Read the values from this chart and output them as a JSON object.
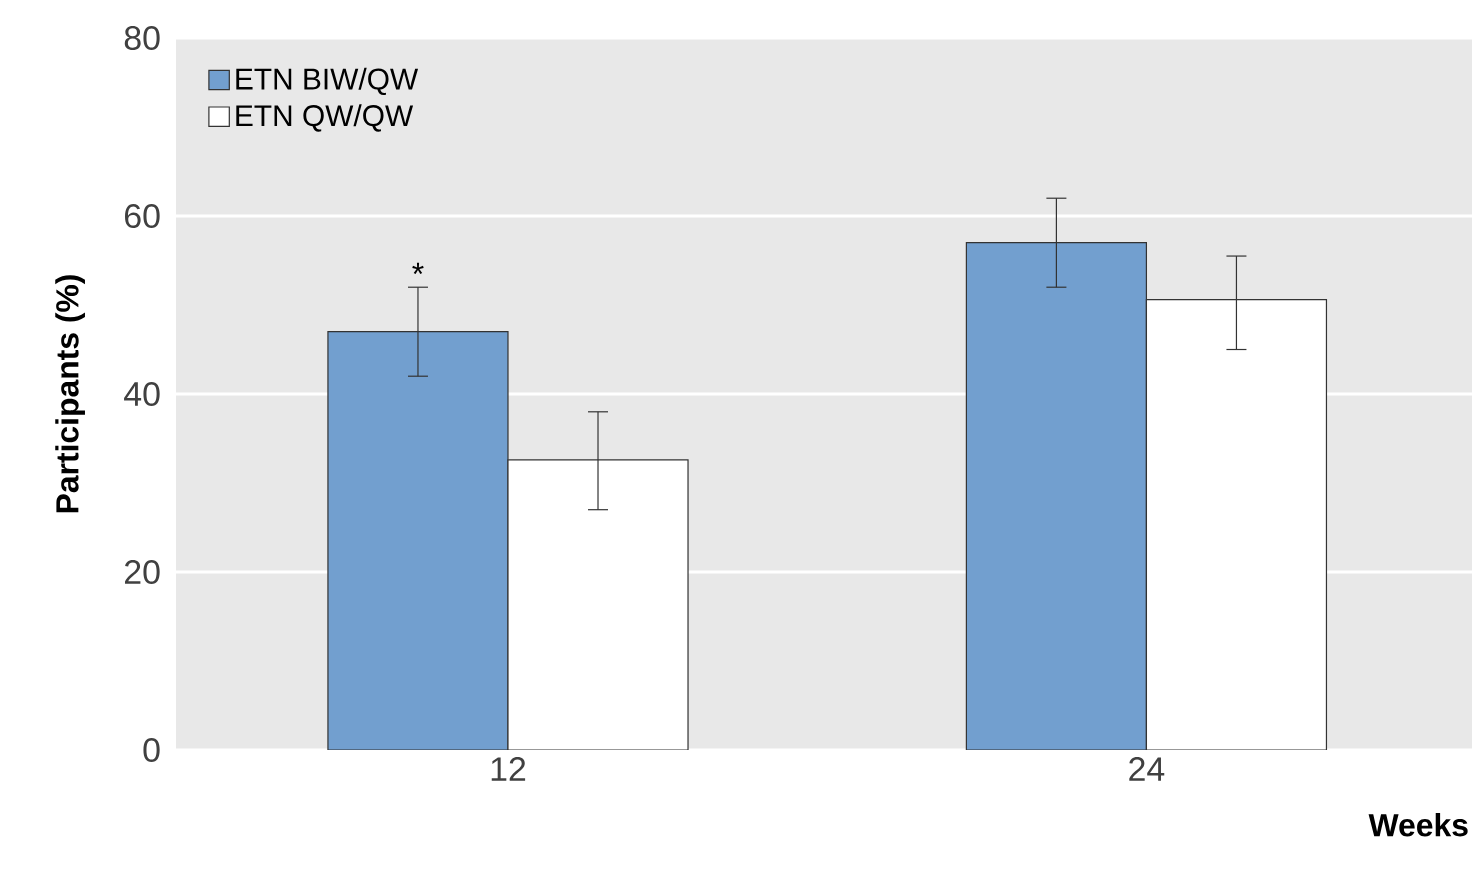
{
  "chart_data": {
    "type": "bar",
    "xlabel": "Weeks",
    "ylabel": "Participants (%)",
    "categories": [
      "12",
      "24"
    ],
    "series": [
      {
        "name": "ETN BIW/QW",
        "color": "#729fcf",
        "values": [
          47,
          57
        ],
        "errors": [
          [
            42,
            52
          ],
          [
            52,
            62
          ]
        ]
      },
      {
        "name": "ETN QW/QW",
        "color": "#ffffff",
        "values": [
          32.6,
          50.6
        ],
        "errors": [
          [
            27,
            38
          ],
          [
            45,
            55.5
          ]
        ]
      }
    ],
    "ylim": [
      0,
      80
    ],
    "yticks": [
      0,
      20,
      40,
      60,
      80
    ],
    "grid": "y",
    "legend": "top left",
    "annotations": [
      "*"
    ]
  }
}
